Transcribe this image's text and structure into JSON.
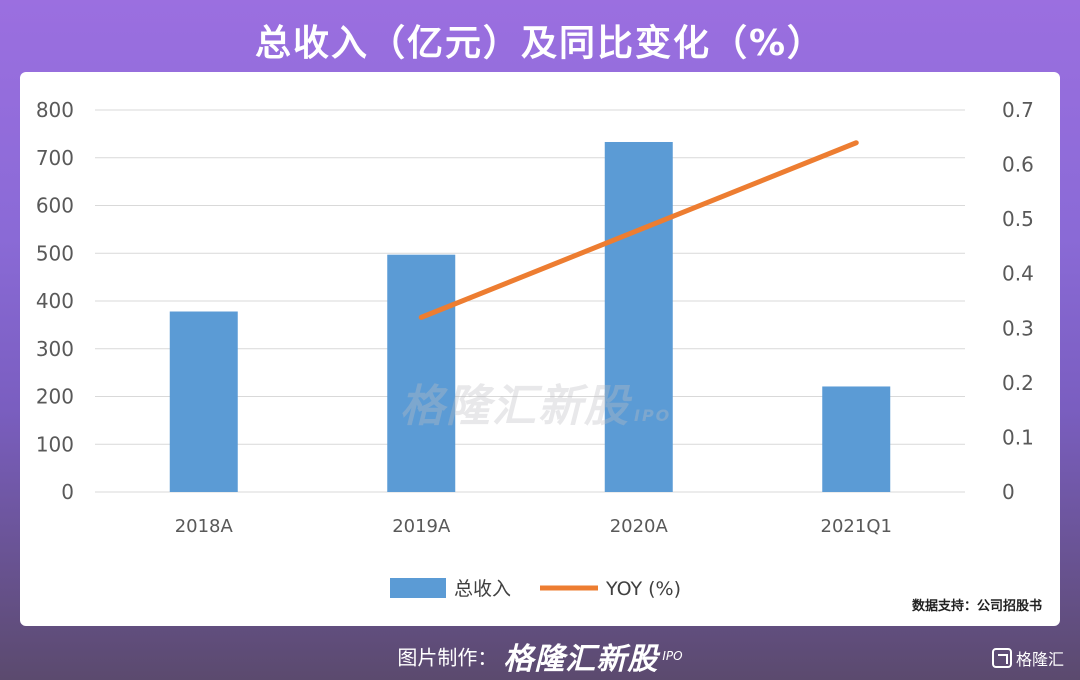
{
  "header": {
    "title": "总收入（亿元）及同比变化（%）"
  },
  "watermark": {
    "text": "格隆汇新股",
    "suffix": "IPO"
  },
  "source": {
    "text": "数据支持：公司招股书"
  },
  "footer": {
    "label": "图片制作：",
    "brand": "格隆汇新股",
    "brand_suffix": "IPO"
  },
  "logo": {
    "text": "格隆汇"
  },
  "chart_data": {
    "type": "bar",
    "categories": [
      "2018A",
      "2019A",
      "2020A",
      "2021Q1"
    ],
    "series": [
      {
        "name": "总收入",
        "type": "bar",
        "axis": "left",
        "values": [
          378,
          497,
          733,
          221
        ],
        "color": "#5b9bd5"
      },
      {
        "name": "YOY (%)",
        "type": "line",
        "axis": "right",
        "values": [
          null,
          0.32,
          0.48,
          0.64
        ],
        "color": "#ed7d31"
      }
    ],
    "y_left": {
      "min": 0,
      "max": 800,
      "ticks": [
        "0",
        "100",
        "200",
        "300",
        "400",
        "500",
        "600",
        "700",
        "800"
      ]
    },
    "y_right": {
      "min": 0,
      "max": 0.7,
      "ticks": [
        "0",
        "0.1",
        "0.2",
        "0.3",
        "0.4",
        "0.5",
        "0.6",
        "0.7"
      ]
    },
    "grid": true,
    "legend_position": "bottom"
  }
}
